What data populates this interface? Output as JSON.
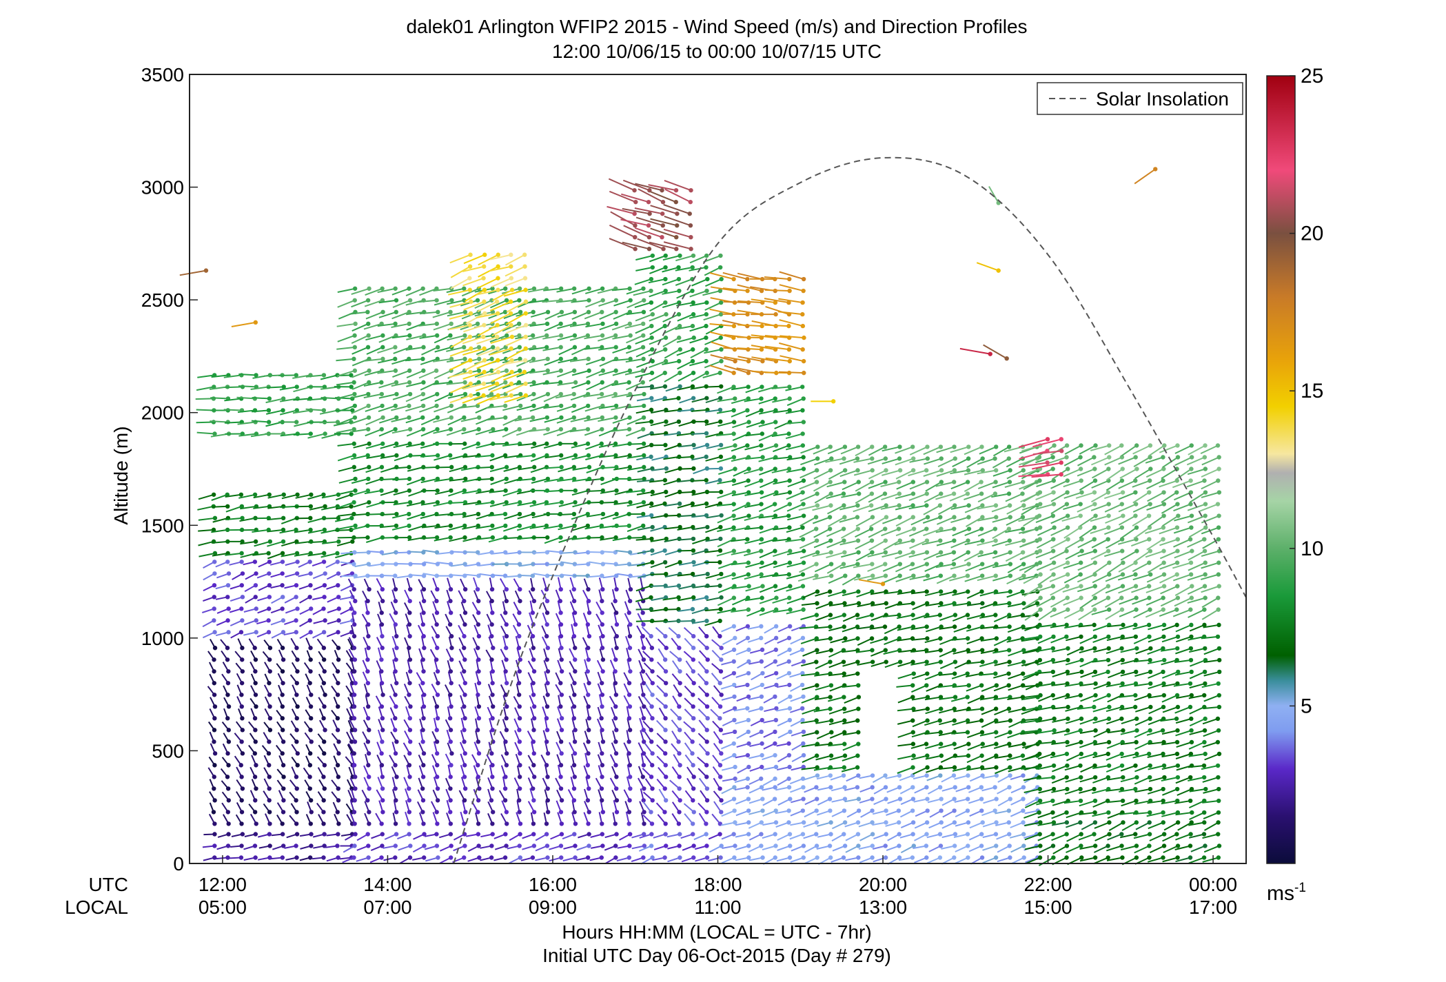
{
  "chart_data": {
    "type": "wind-barb-profile",
    "title": "dalek01 Arlington WFIP2 2015 - Wind Speed (m/s) and Direction Profiles",
    "subtitle": "12:00 10/06/15 to 00:00 10/07/15  UTC",
    "ylabel": "Altitude (m)",
    "xlabel": "Hours HH:MM  (LOCAL = UTC - 7hr)",
    "xlabel2": "Initial UTC Day 06-Oct-2015 (Day # 279)",
    "ylim": [
      0,
      3500
    ],
    "xlim_hours_utc": [
      11.6,
      24.4
    ],
    "yticks": [
      0,
      500,
      1000,
      1500,
      2000,
      2500,
      3000,
      3500
    ],
    "ytick_labels": [
      "0",
      "500",
      "1000",
      "1500",
      "2000",
      "2500",
      "3000",
      "3500"
    ],
    "xticks_utc_hours": [
      12,
      14,
      16,
      18,
      20,
      22,
      24
    ],
    "xtick_labels_utc": [
      "12:00",
      "14:00",
      "16:00",
      "18:00",
      "20:00",
      "22:00",
      "00:00"
    ],
    "xtick_labels_local": [
      "05:00",
      "07:00",
      "09:00",
      "11:00",
      "13:00",
      "15:00",
      "17:00"
    ],
    "row_label_utc": "UTC",
    "row_label_local": "LOCAL",
    "legend": {
      "label": "Solar Insolation",
      "position": "top-right"
    },
    "solar_insolation": {
      "style": "dashed",
      "color": "#555555",
      "points": [
        [
          14.8,
          0
        ],
        [
          15.5,
          800
        ],
        [
          16.2,
          1450
        ],
        [
          17.0,
          2100
        ],
        [
          18.0,
          2750
        ],
        [
          19.0,
          3020
        ],
        [
          20.0,
          3130
        ],
        [
          21.0,
          3050
        ],
        [
          22.0,
          2700
        ],
        [
          23.0,
          2100
        ],
        [
          24.0,
          1450
        ],
        [
          24.4,
          1180
        ]
      ]
    },
    "colorbar": {
      "range": [
        0,
        25
      ],
      "ticks": [
        5,
        10,
        15,
        20,
        25
      ],
      "tick_labels": [
        "5",
        "10",
        "15",
        "20",
        "25"
      ],
      "unit_base": "ms",
      "unit_exp": "-1",
      "stops": [
        {
          "v": 0,
          "c": "#0b0c3a"
        },
        {
          "v": 1.5,
          "c": "#2a1070"
        },
        {
          "v": 3,
          "c": "#5a28c8"
        },
        {
          "v": 4.2,
          "c": "#7f9cf0"
        },
        {
          "v": 5,
          "c": "#8fb0f2"
        },
        {
          "v": 5.8,
          "c": "#3a8e9c"
        },
        {
          "v": 6.6,
          "c": "#006000"
        },
        {
          "v": 8.5,
          "c": "#1a9a3a"
        },
        {
          "v": 10,
          "c": "#5db06a"
        },
        {
          "v": 11.5,
          "c": "#a6d4a6"
        },
        {
          "v": 12.4,
          "c": "#b0b0b0"
        },
        {
          "v": 13,
          "c": "#f6e7a0"
        },
        {
          "v": 14.5,
          "c": "#f2d000"
        },
        {
          "v": 16,
          "c": "#e8a20a"
        },
        {
          "v": 18,
          "c": "#c87a28"
        },
        {
          "v": 20,
          "c": "#7a5040"
        },
        {
          "v": 22,
          "c": "#f04a7a"
        },
        {
          "v": 25,
          "c": "#a00010"
        }
      ]
    },
    "profile_layers": [
      {
        "t0": 11.9,
        "t1": 13.6,
        "z0": 0,
        "z1": 150,
        "speed": 2.0,
        "dir": 260
      },
      {
        "t0": 11.9,
        "t1": 13.6,
        "z0": 150,
        "z1": 1000,
        "speed": 1.0,
        "dir": 330
      },
      {
        "t0": 11.9,
        "t1": 13.6,
        "z0": 1000,
        "z1": 1350,
        "speed": 3.2,
        "dir": 250
      },
      {
        "t0": 11.9,
        "t1": 13.6,
        "z0": 1350,
        "z1": 1660,
        "speed": 7.5,
        "dir": 260
      },
      {
        "t0": 11.9,
        "t1": 13.6,
        "z0": 1880,
        "z1": 2200,
        "speed": 9.0,
        "dir": 265
      },
      {
        "t0": 13.6,
        "t1": 17.2,
        "z0": 0,
        "z1": 150,
        "speed": 3.0,
        "dir": 250
      },
      {
        "t0": 13.6,
        "t1": 17.2,
        "z0": 150,
        "z1": 1250,
        "speed": 2.5,
        "dir": 340
      },
      {
        "t0": 13.6,
        "t1": 17.2,
        "z0": 1250,
        "z1": 1420,
        "speed": 4.8,
        "dir": 270
      },
      {
        "t0": 13.6,
        "t1": 17.2,
        "z0": 1420,
        "z1": 1900,
        "speed": 8.0,
        "dir": 260
      },
      {
        "t0": 13.6,
        "t1": 17.2,
        "z0": 1900,
        "z1": 2600,
        "speed": 9.5,
        "dir": 255
      },
      {
        "t0": 15.0,
        "t1": 15.7,
        "z0": 2050,
        "z1": 2720,
        "speed": 13.8,
        "dir": 250
      },
      {
        "t0": 17.2,
        "t1": 18.2,
        "z0": 0,
        "z1": 150,
        "speed": 3.5,
        "dir": 250
      },
      {
        "t0": 17.2,
        "t1": 18.2,
        "z0": 150,
        "z1": 1050,
        "speed": 3.2,
        "dir": 320
      },
      {
        "t0": 17.2,
        "t1": 18.2,
        "z0": 1050,
        "z1": 2150,
        "speed": 6.5,
        "dir": 260
      },
      {
        "t0": 17.2,
        "t1": 18.2,
        "z0": 2150,
        "z1": 2700,
        "speed": 9.0,
        "dir": 250
      },
      {
        "t0": 17.0,
        "t1": 17.8,
        "z0": 2700,
        "z1": 3000,
        "speed": 20.5,
        "dir": 290
      },
      {
        "t0": 18.2,
        "t1": 19.2,
        "z0": 0,
        "z1": 350,
        "speed": 4.5,
        "dir": 250
      },
      {
        "t0": 18.2,
        "t1": 19.2,
        "z0": 350,
        "z1": 1100,
        "speed": 4.0,
        "dir": 250
      },
      {
        "t0": 18.2,
        "t1": 19.2,
        "z0": 1100,
        "z1": 2150,
        "speed": 8.5,
        "dir": 255
      },
      {
        "t0": 18.2,
        "t1": 19.2,
        "z0": 2150,
        "z1": 2600,
        "speed": 17.0,
        "dir": 280
      },
      {
        "t0": 19.2,
        "t1": 21.9,
        "z0": 0,
        "z1": 400,
        "speed": 4.6,
        "dir": 250
      },
      {
        "t0": 19.2,
        "t1": 21.9,
        "z0": 400,
        "z1": 1250,
        "speed": 7.2,
        "dir": 255
      },
      {
        "t0": 19.2,
        "t1": 21.9,
        "z0": 1250,
        "z1": 1880,
        "speed": 10.0,
        "dir": 250
      },
      {
        "t0": 21.9,
        "t1": 24.1,
        "z0": 0,
        "z1": 200,
        "speed": 7.0,
        "dir": 250
      },
      {
        "t0": 21.9,
        "t1": 24.1,
        "z0": 200,
        "z1": 1100,
        "speed": 7.5,
        "dir": 255
      },
      {
        "t0": 21.9,
        "t1": 24.1,
        "z0": 1100,
        "z1": 1900,
        "speed": 10.2,
        "dir": 245
      },
      {
        "t0": 22.0,
        "t1": 22.3,
        "z0": 1700,
        "z1": 1900,
        "speed": 22.0,
        "dir": 260
      }
    ],
    "gap_region": {
      "t0": 19.85,
      "t1": 20.3,
      "z0": 420,
      "z1": 880
    },
    "isolated_barbs": [
      {
        "t": 11.8,
        "z": 2630,
        "speed": 19.0,
        "dir": 260
      },
      {
        "t": 12.4,
        "z": 2400,
        "speed": 16.5,
        "dir": 260
      },
      {
        "t": 21.3,
        "z": 2260,
        "speed": 23.5,
        "dir": 280
      },
      {
        "t": 21.5,
        "z": 2240,
        "speed": 19.5,
        "dir": 300
      },
      {
        "t": 21.4,
        "z": 2930,
        "speed": 10.5,
        "dir": 330
      },
      {
        "t": 21.4,
        "z": 2630,
        "speed": 15.0,
        "dir": 290
      },
      {
        "t": 23.3,
        "z": 3080,
        "speed": 17.5,
        "dir": 235
      },
      {
        "t": 19.4,
        "z": 2050,
        "speed": 14.5,
        "dir": 270
      },
      {
        "t": 20.0,
        "z": 1240,
        "speed": 16.5,
        "dir": 280
      }
    ]
  }
}
